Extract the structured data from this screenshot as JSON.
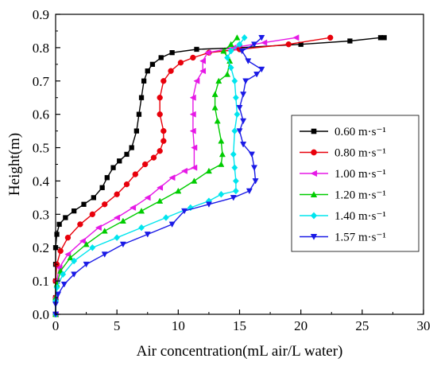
{
  "chart_data": {
    "type": "line",
    "title": "",
    "xlabel": "Air concentration(mL air/L water)",
    "ylabel": "Height(m)",
    "xlim": [
      0,
      30
    ],
    "ylim": [
      0,
      0.9
    ],
    "xticks": [
      "0",
      "5",
      "10",
      "15",
      "20",
      "25",
      "30"
    ],
    "yticks": [
      "0.0",
      "0.1",
      "0.2",
      "0.3",
      "0.4",
      "0.5",
      "0.6",
      "0.7",
      "0.8",
      "0.9"
    ],
    "grid": false,
    "legend_position": "right",
    "series": [
      {
        "name": "0.60 m·s⁻¹",
        "color": "#000000",
        "marker": "square",
        "points": [
          [
            0,
            0
          ],
          [
            0,
            0.05
          ],
          [
            0,
            0.1
          ],
          [
            0,
            0.15
          ],
          [
            0,
            0.2
          ],
          [
            0.1,
            0.24
          ],
          [
            0.3,
            0.27
          ],
          [
            0.8,
            0.29
          ],
          [
            1.5,
            0.31
          ],
          [
            2.3,
            0.33
          ],
          [
            3.1,
            0.35
          ],
          [
            3.8,
            0.38
          ],
          [
            4.2,
            0.41
          ],
          [
            4.7,
            0.44
          ],
          [
            5.2,
            0.46
          ],
          [
            5.8,
            0.48
          ],
          [
            6.2,
            0.5
          ],
          [
            6.6,
            0.55
          ],
          [
            6.8,
            0.6
          ],
          [
            7.0,
            0.65
          ],
          [
            7.2,
            0.7
          ],
          [
            7.5,
            0.73
          ],
          [
            7.9,
            0.75
          ],
          [
            8.6,
            0.77
          ],
          [
            9.5,
            0.785
          ],
          [
            11.5,
            0.795
          ],
          [
            15,
            0.8
          ],
          [
            20,
            0.81
          ],
          [
            24,
            0.82
          ],
          [
            26.5,
            0.83
          ],
          [
            26.8,
            0.83
          ]
        ]
      },
      {
        "name": "0.80 m·s⁻¹",
        "color": "#e8000b",
        "marker": "circle",
        "points": [
          [
            0,
            0
          ],
          [
            0,
            0.05
          ],
          [
            0,
            0.1
          ],
          [
            0.1,
            0.15
          ],
          [
            0.4,
            0.19
          ],
          [
            1.0,
            0.23
          ],
          [
            2.0,
            0.27
          ],
          [
            3.0,
            0.3
          ],
          [
            4.0,
            0.33
          ],
          [
            5.0,
            0.36
          ],
          [
            5.8,
            0.39
          ],
          [
            6.5,
            0.42
          ],
          [
            7.3,
            0.45
          ],
          [
            8.0,
            0.47
          ],
          [
            8.5,
            0.49
          ],
          [
            8.8,
            0.52
          ],
          [
            8.8,
            0.55
          ],
          [
            8.5,
            0.6
          ],
          [
            8.5,
            0.65
          ],
          [
            8.8,
            0.7
          ],
          [
            9.4,
            0.73
          ],
          [
            10.2,
            0.755
          ],
          [
            11.2,
            0.77
          ],
          [
            12.5,
            0.785
          ],
          [
            15,
            0.795
          ],
          [
            19,
            0.81
          ],
          [
            22.4,
            0.83
          ]
        ]
      },
      {
        "name": "1.00 m·s⁻¹",
        "color": "#e619e6",
        "marker": "triangle-left",
        "points": [
          [
            0,
            0
          ],
          [
            0,
            0.05
          ],
          [
            0.1,
            0.1
          ],
          [
            0.3,
            0.14
          ],
          [
            1.0,
            0.18
          ],
          [
            2.2,
            0.22
          ],
          [
            3.5,
            0.26
          ],
          [
            5.0,
            0.29
          ],
          [
            6.3,
            0.32
          ],
          [
            7.5,
            0.35
          ],
          [
            8.5,
            0.38
          ],
          [
            9.5,
            0.41
          ],
          [
            10.5,
            0.43
          ],
          [
            11.3,
            0.44
          ],
          [
            11.3,
            0.5
          ],
          [
            11.2,
            0.55
          ],
          [
            11.2,
            0.6
          ],
          [
            11.2,
            0.65
          ],
          [
            11.5,
            0.7
          ],
          [
            12.0,
            0.73
          ],
          [
            12.0,
            0.76
          ],
          [
            12.4,
            0.785
          ],
          [
            14.5,
            0.8
          ],
          [
            17,
            0.815
          ],
          [
            19.6,
            0.83
          ]
        ]
      },
      {
        "name": "1.20 m·s⁻¹",
        "color": "#00cc00",
        "marker": "triangle-up",
        "points": [
          [
            0,
            0
          ],
          [
            0,
            0.05
          ],
          [
            0.1,
            0.09
          ],
          [
            0.4,
            0.13
          ],
          [
            1.2,
            0.17
          ],
          [
            2.5,
            0.21
          ],
          [
            4.0,
            0.25
          ],
          [
            5.5,
            0.28
          ],
          [
            7.0,
            0.31
          ],
          [
            8.5,
            0.34
          ],
          [
            10.0,
            0.37
          ],
          [
            11.3,
            0.4
          ],
          [
            12.5,
            0.43
          ],
          [
            13.5,
            0.45
          ],
          [
            13.6,
            0.48
          ],
          [
            13.5,
            0.52
          ],
          [
            13.2,
            0.58
          ],
          [
            13.0,
            0.62
          ],
          [
            13.0,
            0.66
          ],
          [
            13.3,
            0.7
          ],
          [
            14.0,
            0.72
          ],
          [
            14.2,
            0.76
          ],
          [
            13.7,
            0.79
          ],
          [
            14.3,
            0.81
          ],
          [
            14.8,
            0.83
          ]
        ]
      },
      {
        "name": "1.40 m·s⁻¹",
        "color": "#00e5ee",
        "marker": "diamond",
        "points": [
          [
            0,
            0
          ],
          [
            0,
            0.04
          ],
          [
            0.1,
            0.08
          ],
          [
            0.6,
            0.12
          ],
          [
            1.5,
            0.16
          ],
          [
            3.0,
            0.2
          ],
          [
            5.0,
            0.23
          ],
          [
            7.0,
            0.26
          ],
          [
            9.0,
            0.29
          ],
          [
            11.0,
            0.32
          ],
          [
            12.5,
            0.34
          ],
          [
            13.5,
            0.36
          ],
          [
            14.7,
            0.37
          ],
          [
            14.7,
            0.4
          ],
          [
            14.6,
            0.44
          ],
          [
            14.5,
            0.48
          ],
          [
            14.6,
            0.55
          ],
          [
            14.8,
            0.6
          ],
          [
            14.7,
            0.65
          ],
          [
            14.6,
            0.7
          ],
          [
            14.3,
            0.74
          ],
          [
            14.0,
            0.77
          ],
          [
            14.3,
            0.79
          ],
          [
            15.0,
            0.81
          ],
          [
            15.4,
            0.83
          ]
        ]
      },
      {
        "name": "1.57 m·s⁻¹",
        "color": "#1a1ae6",
        "marker": "triangle-down",
        "points": [
          [
            0,
            0
          ],
          [
            0,
            0.03
          ],
          [
            0.2,
            0.06
          ],
          [
            0.7,
            0.09
          ],
          [
            1.5,
            0.12
          ],
          [
            2.5,
            0.15
          ],
          [
            4.0,
            0.18
          ],
          [
            5.5,
            0.21
          ],
          [
            7.5,
            0.24
          ],
          [
            9.5,
            0.27
          ],
          [
            10.5,
            0.31
          ],
          [
            12.5,
            0.33
          ],
          [
            14.5,
            0.35
          ],
          [
            15.8,
            0.37
          ],
          [
            16.3,
            0.4
          ],
          [
            16.2,
            0.44
          ],
          [
            16.0,
            0.48
          ],
          [
            15.3,
            0.51
          ],
          [
            15.0,
            0.55
          ],
          [
            15.3,
            0.58
          ],
          [
            15.0,
            0.62
          ],
          [
            15.3,
            0.66
          ],
          [
            15.5,
            0.7
          ],
          [
            16.4,
            0.72
          ],
          [
            16.8,
            0.735
          ],
          [
            15.7,
            0.76
          ],
          [
            15.2,
            0.79
          ],
          [
            16.2,
            0.81
          ],
          [
            16.8,
            0.83
          ]
        ]
      }
    ]
  }
}
